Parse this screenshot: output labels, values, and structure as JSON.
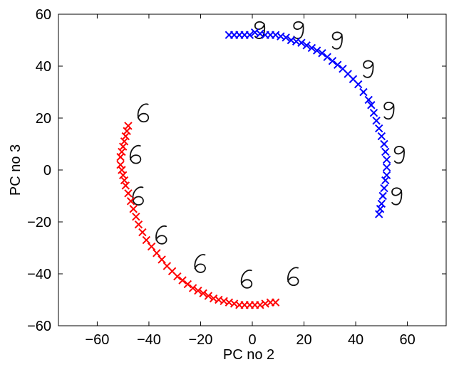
{
  "chart_data": {
    "type": "scatter",
    "title": "",
    "xlabel": "PC no 2",
    "ylabel": "PC no 3",
    "xlim": [
      -75,
      75
    ],
    "ylim": [
      -60,
      60
    ],
    "xticks": [
      -60,
      -40,
      -20,
      0,
      20,
      40,
      60
    ],
    "yticks": [
      -60,
      -40,
      -20,
      0,
      20,
      40,
      60
    ],
    "grid": false,
    "marker": "x",
    "series": [
      {
        "color": "#0000ff",
        "x": [
          -9,
          -7,
          -5,
          -3,
          -1,
          1,
          3,
          5,
          7,
          9,
          11,
          13,
          15,
          17,
          19,
          21,
          23,
          25,
          27,
          29,
          31,
          33,
          35,
          37,
          39,
          41,
          43,
          45,
          46,
          47,
          48,
          49,
          50,
          51,
          51.5,
          52,
          52,
          52,
          51.5,
          51,
          50.5,
          50,
          49.5,
          49
        ],
        "y": [
          52,
          52,
          52,
          52,
          52,
          53,
          52.5,
          52,
          52,
          52,
          51.5,
          51,
          50,
          49.5,
          49,
          48,
          47,
          46,
          45,
          43.5,
          42,
          40.5,
          39,
          37,
          35,
          33,
          30,
          27,
          25,
          22,
          19,
          16,
          13,
          10,
          7,
          4,
          1,
          -2,
          -4,
          -7,
          -10,
          -13,
          -15,
          -17
        ]
      },
      {
        "color": "#ff0000",
        "x": [
          -48,
          -48.5,
          -49,
          -49.5,
          -50,
          -50.5,
          -51,
          -51,
          -50.5,
          -50,
          -49.5,
          -49,
          -48,
          -47,
          -46,
          -45,
          -44,
          -42.5,
          -41,
          -39,
          -37,
          -35,
          -33,
          -31,
          -29,
          -27,
          -25,
          -23,
          -21,
          -19,
          -17,
          -15,
          -13,
          -11,
          -9,
          -7,
          -5,
          -3,
          -1,
          1,
          3,
          5,
          7,
          9
        ],
        "y": [
          17,
          15,
          13,
          11,
          9,
          7,
          5,
          2,
          0,
          -2,
          -4,
          -6,
          -9,
          -12,
          -15,
          -18,
          -21,
          -24,
          -27,
          -29.5,
          -32,
          -34.5,
          -37,
          -39,
          -41,
          -42.5,
          -44,
          -45.5,
          -46.5,
          -47.5,
          -48.5,
          -49.5,
          -50,
          -50.5,
          -51,
          -51.5,
          -52,
          -52,
          -52,
          -52,
          -52,
          -51.5,
          -51,
          -51
        ]
      }
    ],
    "annotations": [
      {
        "type": "digit-image",
        "digit": "9",
        "x": 3,
        "y": 55
      },
      {
        "type": "digit-image",
        "digit": "9",
        "x": 18,
        "y": 55
      },
      {
        "type": "digit-image",
        "digit": "9",
        "x": 33,
        "y": 51
      },
      {
        "type": "digit-image",
        "digit": "9",
        "x": 45,
        "y": 40
      },
      {
        "type": "digit-image",
        "digit": "9",
        "x": 53,
        "y": 24
      },
      {
        "type": "digit-image",
        "digit": "9",
        "x": 57,
        "y": 7
      },
      {
        "type": "digit-image",
        "digit": "9",
        "x": 56,
        "y": -9
      },
      {
        "type": "digit-image",
        "digit": "6",
        "x": -42,
        "y": 22
      },
      {
        "type": "digit-image",
        "digit": "6",
        "x": -45,
        "y": 6
      },
      {
        "type": "digit-image",
        "digit": "6",
        "x": -44,
        "y": -10
      },
      {
        "type": "digit-image",
        "digit": "6",
        "x": -35,
        "y": -25
      },
      {
        "type": "digit-image",
        "digit": "6",
        "x": -20,
        "y": -36
      },
      {
        "type": "digit-image",
        "digit": "6",
        "x": -2,
        "y": -42
      },
      {
        "type": "digit-image",
        "digit": "6",
        "x": 16,
        "y": -41
      }
    ]
  }
}
